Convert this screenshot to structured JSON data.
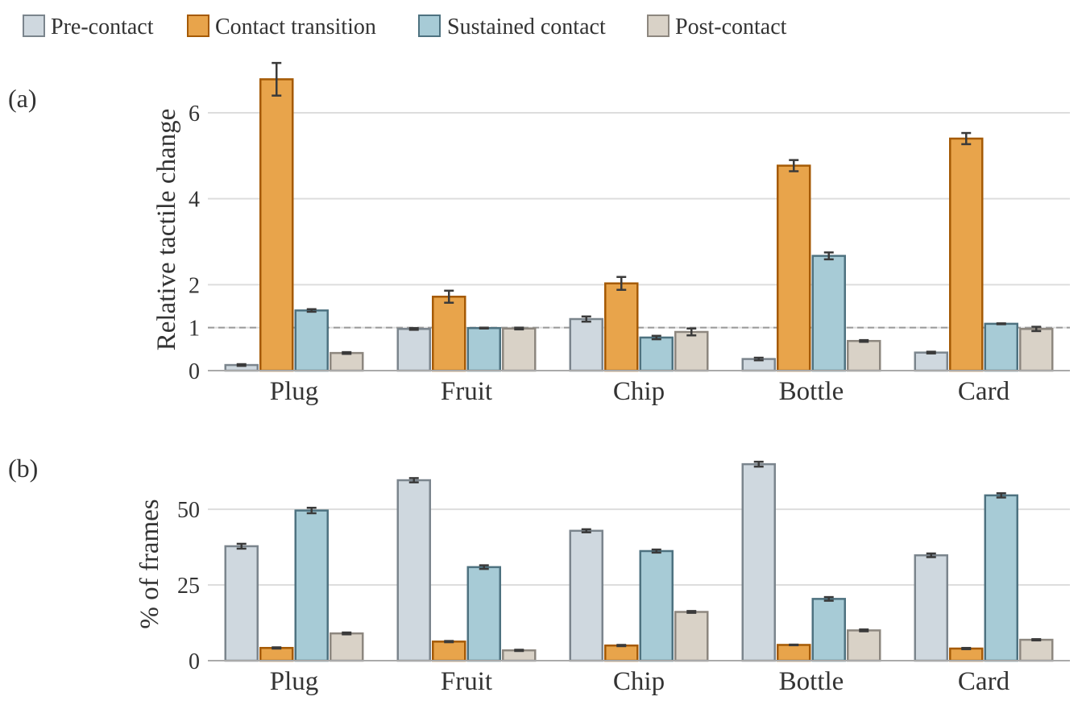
{
  "colors": {
    "Pre-contact": {
      "fill": "#cfd8df",
      "stroke": "#7b858d"
    },
    "Contact transition": {
      "fill": "#e8a44b",
      "stroke": "#a55a05"
    },
    "Sustained contact": {
      "fill": "#a7cbd6",
      "stroke": "#4e7280"
    },
    "Post-contact": {
      "fill": "#d9d2c7",
      "stroke": "#8d877f"
    }
  },
  "legend": [
    "Pre-contact",
    "Contact transition",
    "Sustained contact",
    "Post-contact"
  ],
  "chart_data": [
    {
      "type": "bar",
      "panel_label": "(a)",
      "ylabel": "Relative tactile change",
      "categories": [
        "Plug",
        "Fruit",
        "Chip",
        "Bottle",
        "Card"
      ],
      "ylim": [
        0,
        7.5
      ],
      "yticks": [
        0,
        1,
        2,
        4,
        6
      ],
      "grid": true,
      "reference_line": 1,
      "series": [
        {
          "name": "Pre-contact",
          "values": [
            0.13,
            0.97,
            1.2,
            0.27,
            0.42
          ],
          "errors": [
            0.02,
            0.02,
            0.06,
            0.03,
            0.02
          ]
        },
        {
          "name": "Contact transition",
          "values": [
            6.78,
            1.72,
            2.03,
            4.77,
            5.4
          ],
          "errors": [
            0.38,
            0.14,
            0.15,
            0.13,
            0.13
          ]
        },
        {
          "name": "Sustained contact",
          "values": [
            1.4,
            0.99,
            0.77,
            2.67,
            1.09
          ],
          "errors": [
            0.03,
            0.01,
            0.04,
            0.08,
            0.01
          ]
        },
        {
          "name": "Post-contact",
          "values": [
            0.41,
            0.98,
            0.9,
            0.69,
            0.97
          ],
          "errors": [
            0.02,
            0.02,
            0.08,
            0.02,
            0.05
          ]
        }
      ]
    },
    {
      "type": "bar",
      "panel_label": "(b)",
      "ylabel": "% of frames",
      "categories": [
        "Plug",
        "Fruit",
        "Chip",
        "Bottle",
        "Card"
      ],
      "ylim": [
        0,
        66
      ],
      "yticks": [
        0,
        25,
        50
      ],
      "grid": true,
      "series": [
        {
          "name": "Pre-contact",
          "values": [
            37.8,
            59.6,
            42.9,
            64.9,
            34.8
          ],
          "errors": [
            0.8,
            0.7,
            0.5,
            0.8,
            0.6
          ]
        },
        {
          "name": "Contact transition",
          "values": [
            4.2,
            6.3,
            5.0,
            5.2,
            4.0
          ],
          "errors": [
            0.2,
            0.2,
            0.2,
            0.1,
            0.2
          ]
        },
        {
          "name": "Sustained contact",
          "values": [
            49.6,
            30.9,
            36.2,
            20.4,
            54.6
          ],
          "errors": [
            0.9,
            0.6,
            0.5,
            0.6,
            0.7
          ]
        },
        {
          "name": "Post-contact",
          "values": [
            9.0,
            3.4,
            16.1,
            10.0,
            6.9
          ],
          "errors": [
            0.3,
            0.2,
            0.3,
            0.3,
            0.2
          ]
        }
      ]
    }
  ]
}
